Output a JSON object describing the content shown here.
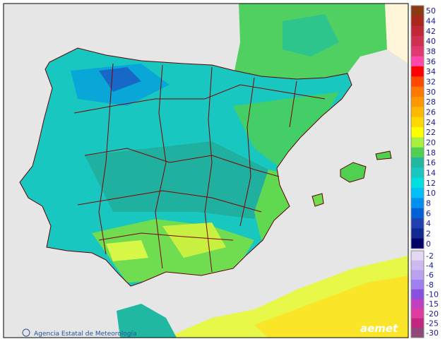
{
  "credit": "Agencia Estatal de Meteorología",
  "logo": "aemet",
  "legend": {
    "upper": [
      {
        "label": 50,
        "color": "#8b3a14"
      },
      {
        "label": 44,
        "color": "#a8281c"
      },
      {
        "label": 42,
        "color": "#c02838"
      },
      {
        "label": 40,
        "color": "#d03050"
      },
      {
        "label": 38,
        "color": "#e03870"
      },
      {
        "label": 36,
        "color": "#ff48a8"
      },
      {
        "label": 34,
        "color": "#ff0000"
      },
      {
        "label": 32,
        "color": "#ff4800"
      },
      {
        "label": 30,
        "color": "#ff7800"
      },
      {
        "label": 28,
        "color": "#ff9800"
      },
      {
        "label": 26,
        "color": "#ffb800"
      },
      {
        "label": 24,
        "color": "#ffd800"
      },
      {
        "label": 22,
        "color": "#ffff00"
      },
      {
        "label": 20,
        "color": "#a8f040"
      },
      {
        "label": 18,
        "color": "#50d050"
      },
      {
        "label": 16,
        "color": "#20b8a0"
      },
      {
        "label": 14,
        "color": "#18c8c0"
      },
      {
        "label": 12,
        "color": "#00e0e0"
      },
      {
        "label": 10,
        "color": "#00c0f8"
      },
      {
        "label": 8,
        "color": "#0090f0"
      },
      {
        "label": 6,
        "color": "#0060d8"
      },
      {
        "label": 4,
        "color": "#2040b0"
      },
      {
        "label": 2,
        "color": "#102890"
      },
      {
        "label": 0,
        "color": "#000068"
      }
    ],
    "lower": [
      {
        "label": -2,
        "color": "#e4d8f4"
      },
      {
        "label": -4,
        "color": "#d0b8f0"
      },
      {
        "label": -6,
        "color": "#bca0f0"
      },
      {
        "label": -8,
        "color": "#a080f0"
      },
      {
        "label": -10,
        "color": "#8850e0"
      },
      {
        "label": -15,
        "color": "#c040c0"
      },
      {
        "label": -20,
        "color": "#e03ca0"
      },
      {
        "label": -25,
        "color": "#c02880"
      },
      {
        "label": -30,
        "color": "#904878"
      }
    ]
  }
}
